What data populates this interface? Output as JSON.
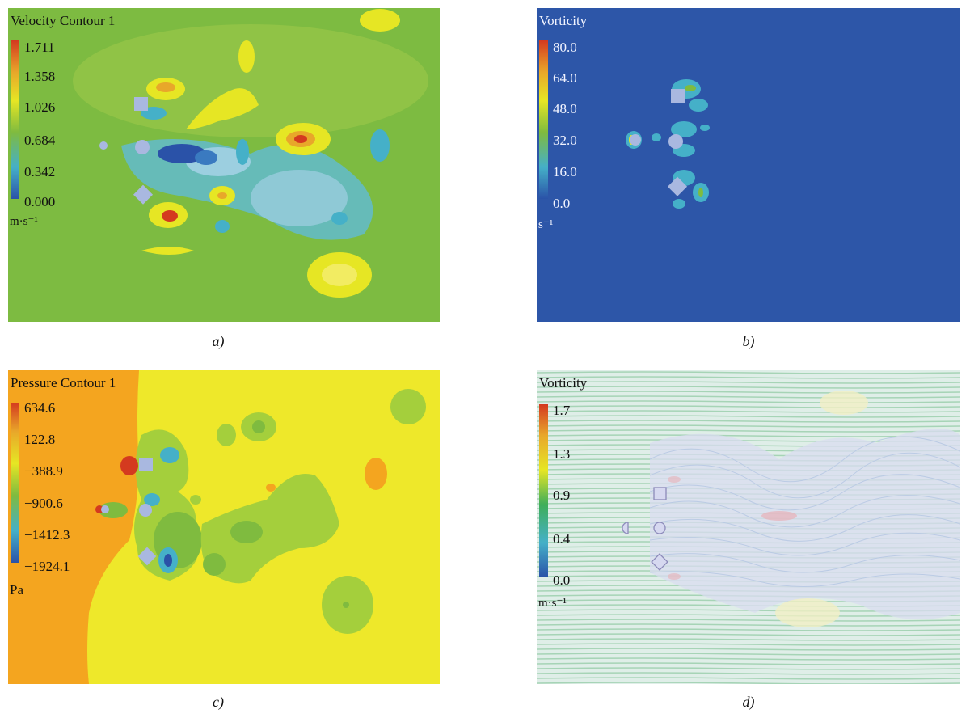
{
  "panels": [
    {
      "id": "a",
      "title": "Velocity Contour 1",
      "ticks": [
        "1.711",
        "1.358",
        "1.026",
        "0.684",
        "0.342",
        "0.000"
      ],
      "unit": "m·s⁻¹",
      "caption": "a)"
    },
    {
      "id": "b",
      "title": "Vorticity",
      "ticks": [
        "80.0",
        "64.0",
        "48.0",
        "32.0",
        "16.0",
        "0.0"
      ],
      "unit": "s⁻¹",
      "caption": "b)"
    },
    {
      "id": "c",
      "title": "Pressure Contour 1",
      "ticks": [
        "634.6",
        "122.8",
        "−388.9",
        "−900.6",
        "−1412.3",
        "−1924.1"
      ],
      "unit": "Pa",
      "caption": "c)"
    },
    {
      "id": "d",
      "title": "Vorticity",
      "ticks": [
        "1.7",
        "1.3",
        "0.9",
        "0.4",
        "0.0"
      ],
      "unit": "m·s⁻¹",
      "caption": "d)"
    }
  ],
  "colors": {
    "rainbow": [
      "#d43a1f",
      "#e8a72a",
      "#e6e624",
      "#7fbb3f",
      "#45b0c8",
      "#2a52a8"
    ],
    "velocity_bg": "#7dbb41",
    "vorticity_bg": "#2d56a8",
    "pressure_high": "#f4a51f",
    "pressure_mid": "#eee82a"
  }
}
